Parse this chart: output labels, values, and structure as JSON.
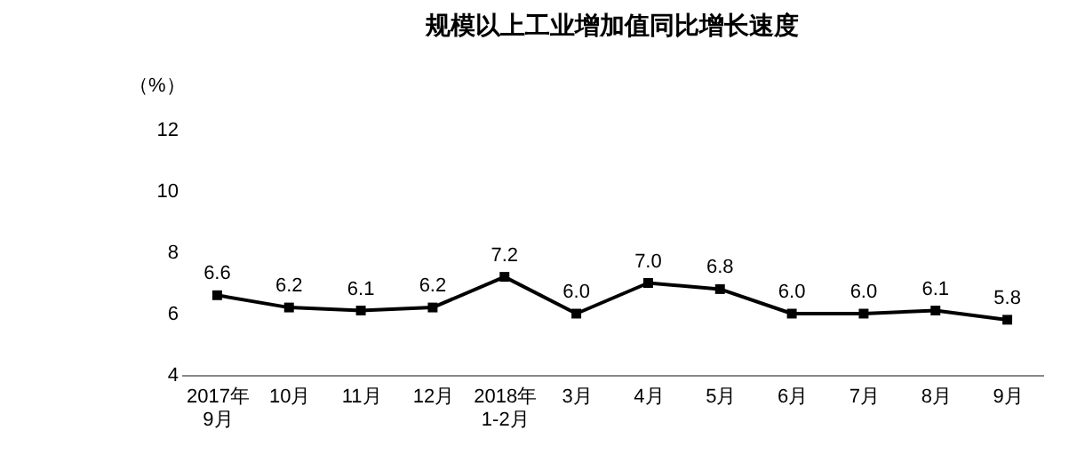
{
  "chart_data": {
    "type": "line",
    "title": "规模以上工业增加值同比增长速度",
    "ylabel": "（%）",
    "categories": [
      "2017年\n9月",
      "10月",
      "11月",
      "12月",
      "2018年\n1-2月",
      "3月",
      "4月",
      "5月",
      "6月",
      "7月",
      "8月",
      "9月"
    ],
    "series": [
      {
        "color": "#000000",
        "values": [
          6.6,
          6.2,
          6.1,
          6.2,
          7.2,
          6.0,
          7.0,
          6.8,
          6.0,
          6.0,
          6.1,
          5.8
        ],
        "value_labels": [
          "6.6",
          "6.2",
          "6.1",
          "6.2",
          "7.2",
          "6.0",
          "7.0",
          "6.8",
          "6.0",
          "6.0",
          "6.1",
          "5.8"
        ]
      }
    ],
    "ylim": [
      4,
      12
    ],
    "yticks": [
      4,
      6,
      8,
      10,
      12
    ],
    "grid": false,
    "legend": false,
    "marker": "square",
    "line_style": "solid"
  }
}
